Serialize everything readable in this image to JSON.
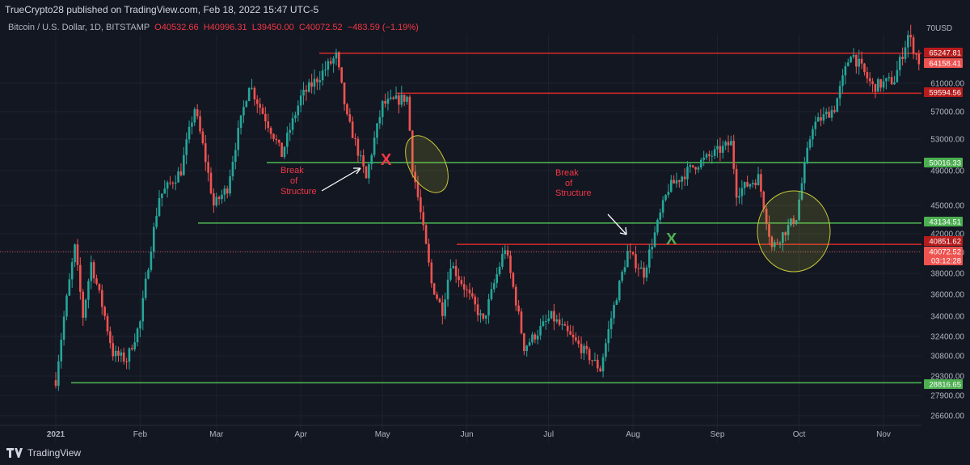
{
  "publisher_line": "TrueCrypto28 published on TradingView.com, Feb 18, 2022 15:47 UTC-5",
  "symbol": {
    "name": "Bitcoin / U.S. Dollar, 1D, BITSTAMP",
    "open": "O40532.66",
    "high": "H40996.31",
    "low": "L39450.00",
    "close": "C40072.52",
    "change": "−483.59 (−1.19%)"
  },
  "currency": "USD",
  "footer_brand": "TradingView",
  "colors": {
    "up": "#26a69a",
    "down": "#ef5350",
    "support": "#4caf50",
    "resistance": "#c62828",
    "highlight": "#c6c63a",
    "bg": "#131722",
    "text": "#b2b5be"
  },
  "chart_data": {
    "type": "candlestick",
    "title": "Bitcoin / U.S. Dollar, 1D, BITSTAMP",
    "y_ticks": [
      26600,
      27900,
      29300,
      30800,
      32400,
      34000,
      36000,
      38000,
      40000,
      42000,
      45000,
      49000,
      53000,
      57000,
      61000
    ],
    "x_ticks": [
      "2021",
      "Feb",
      "Mar",
      "Apr",
      "May",
      "Jun",
      "Jul",
      "Aug",
      "Sep",
      "Oct",
      "Nov"
    ],
    "price_labels": [
      {
        "text": "65247.81",
        "kind": "resistance"
      },
      {
        "text": "64158.41",
        "kind": "last-red"
      },
      {
        "text": "59594.56",
        "kind": "resistance"
      },
      {
        "text": "50016.33",
        "kind": "support"
      },
      {
        "text": "43134.51",
        "kind": "support"
      },
      {
        "text": "40851.62",
        "kind": "resistance"
      },
      {
        "text": "40072.52",
        "kind": "last-red"
      },
      {
        "text": "03:12:28",
        "kind": "last-red"
      },
      {
        "text": "28816.65",
        "kind": "support"
      }
    ],
    "top_label": "70",
    "horizontal_levels": [
      {
        "price": 65247.81,
        "color": "resistance"
      },
      {
        "price": 59594.56,
        "color": "resistance"
      },
      {
        "price": 50016.33,
        "color": "support"
      },
      {
        "price": 43134.51,
        "color": "support"
      },
      {
        "price": 40851.62,
        "color": "resistance"
      },
      {
        "price": 28816.65,
        "color": "support"
      }
    ],
    "annotations": [
      {
        "text": "Break",
        "color": "#f23645"
      },
      {
        "text": "of",
        "color": "#f23645"
      },
      {
        "text": "Structure",
        "color": "#f23645"
      },
      {
        "text": "X",
        "color": "#f23645"
      },
      {
        "text": "Break",
        "color": "#f23645"
      },
      {
        "text": "of",
        "color": "#f23645"
      },
      {
        "text": "Structure",
        "color": "#f23645"
      },
      {
        "text": "X",
        "color": "#4caf50"
      }
    ],
    "price_path": [
      [
        "2021-01-01",
        29000
      ],
      [
        "2021-01-08",
        40500
      ],
      [
        "2021-01-11",
        34000
      ],
      [
        "2021-01-14",
        39000
      ],
      [
        "2021-01-22",
        31000
      ],
      [
        "2021-01-27",
        30500
      ],
      [
        "2021-02-01",
        33500
      ],
      [
        "2021-02-08",
        46000
      ],
      [
        "2021-02-16",
        49000
      ],
      [
        "2021-02-21",
        57500
      ],
      [
        "2021-02-28",
        45000
      ],
      [
        "2021-03-05",
        47000
      ],
      [
        "2021-03-13",
        61000
      ],
      [
        "2021-03-25",
        51000
      ],
      [
        "2021-04-01",
        59000
      ],
      [
        "2021-04-14",
        64800
      ],
      [
        "2021-04-18",
        56000
      ],
      [
        "2021-04-25",
        48000
      ],
      [
        "2021-05-01",
        58000
      ],
      [
        "2021-05-10",
        59000
      ],
      [
        "2021-05-12",
        49500
      ],
      [
        "2021-05-19",
        37000
      ],
      [
        "2021-05-23",
        34500
      ],
      [
        "2021-05-26",
        39000
      ],
      [
        "2021-06-07",
        33500
      ],
      [
        "2021-06-15",
        40500
      ],
      [
        "2021-06-22",
        31500
      ],
      [
        "2021-07-02",
        34000
      ],
      [
        "2021-07-20",
        29800
      ],
      [
        "2021-07-30",
        40000
      ],
      [
        "2021-08-05",
        38000
      ],
      [
        "2021-08-14",
        47000
      ],
      [
        "2021-08-23",
        49500
      ],
      [
        "2021-09-06",
        52500
      ],
      [
        "2021-09-08",
        46500
      ],
      [
        "2021-09-16",
        48200
      ],
      [
        "2021-09-21",
        40500
      ],
      [
        "2021-09-30",
        43800
      ],
      [
        "2021-10-06",
        55000
      ],
      [
        "2021-10-14",
        57500
      ],
      [
        "2021-10-20",
        65500
      ],
      [
        "2021-10-28",
        60500
      ],
      [
        "2021-11-05",
        61500
      ],
      [
        "2021-11-10",
        67800
      ],
      [
        "2021-11-14",
        64158
      ]
    ]
  }
}
